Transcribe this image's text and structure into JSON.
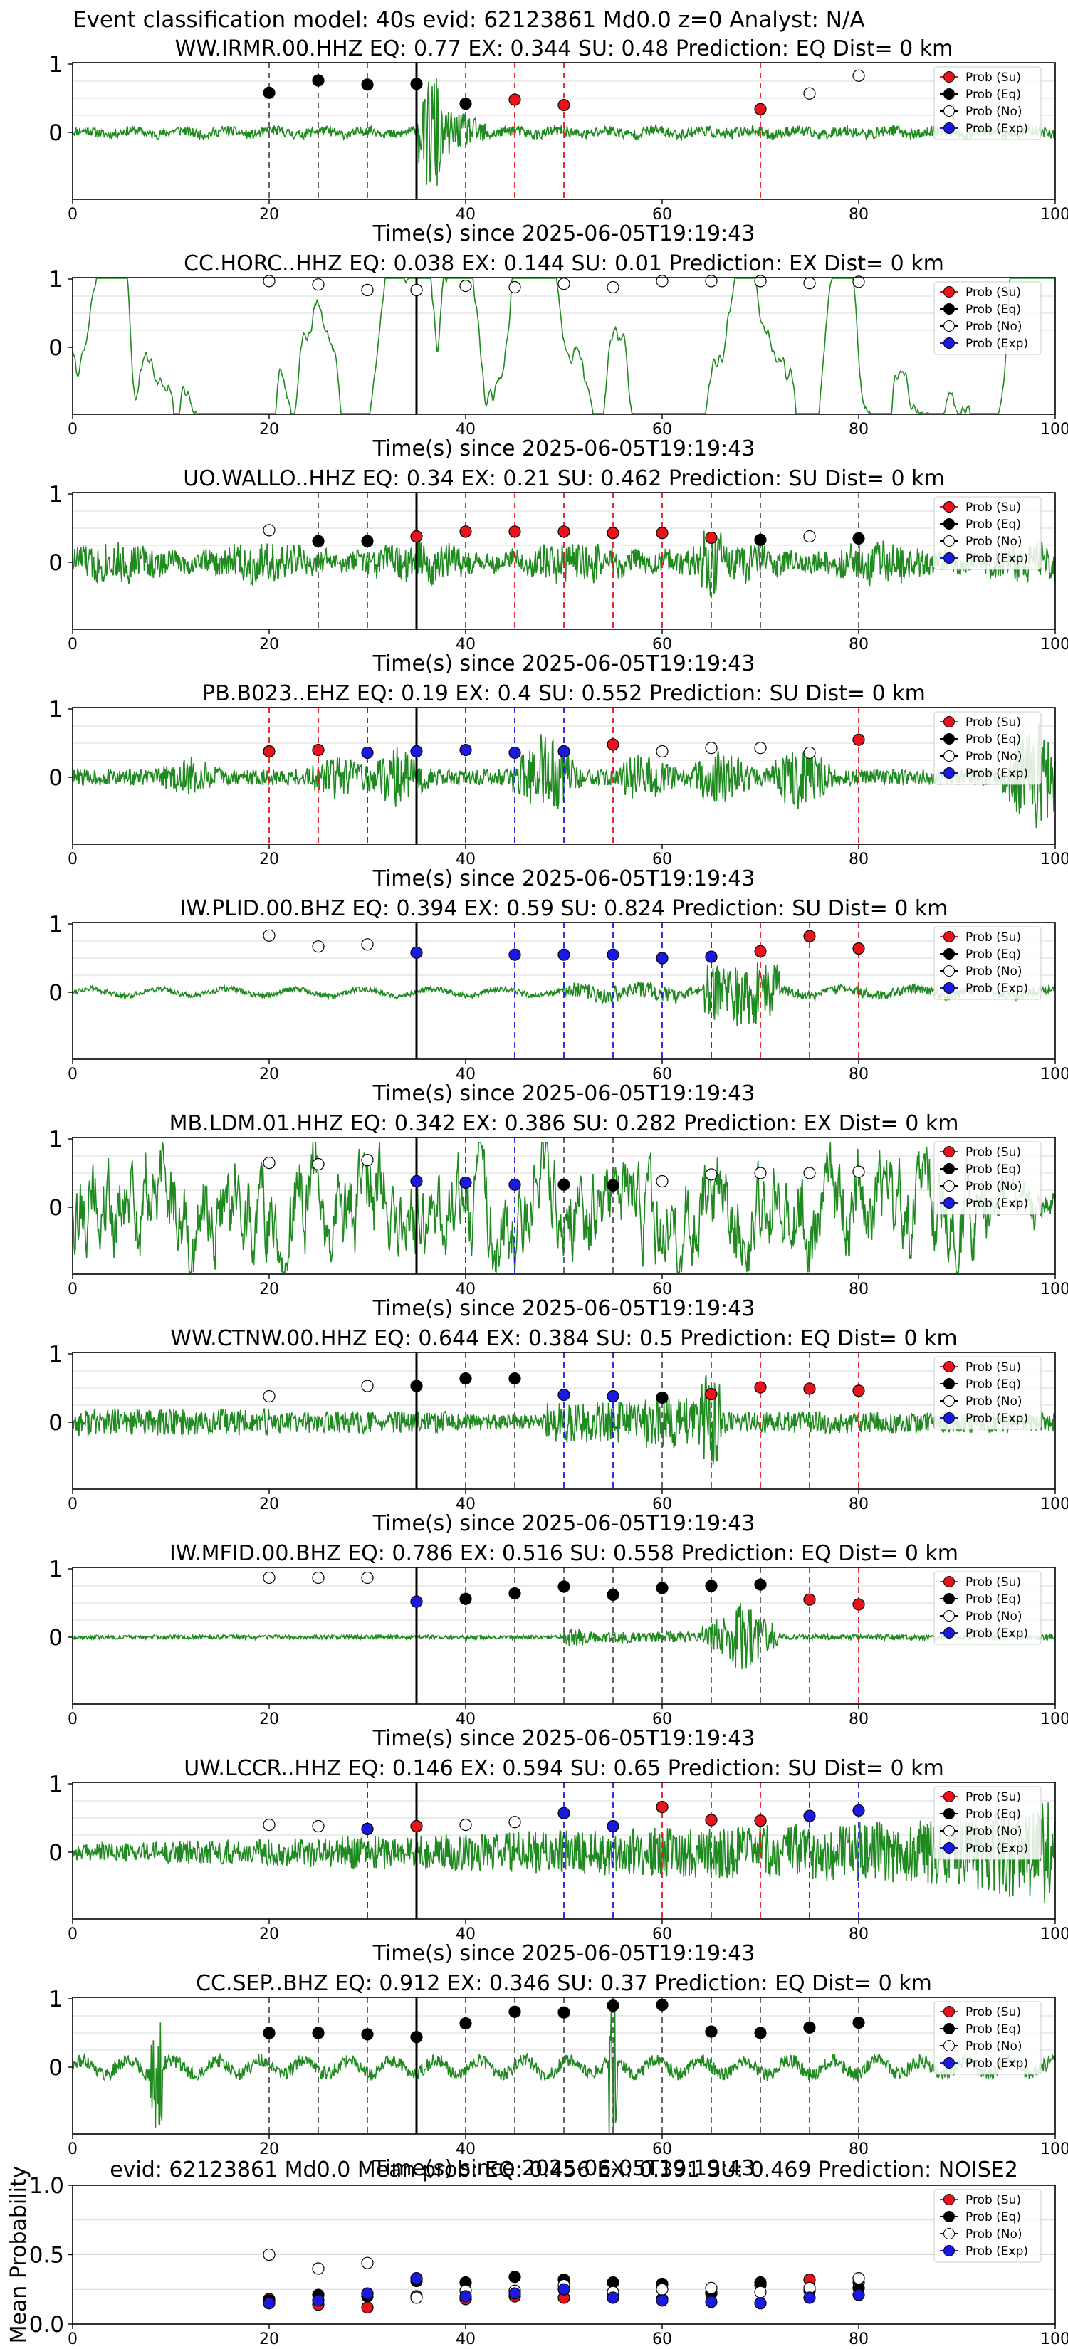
{
  "figure_title": "Event classification model: 40s evid: 62123861 Md0.0 z=0 Analyst: N/A",
  "legend": [
    {
      "label": "Prob (Su)",
      "color": "#e8141b"
    },
    {
      "label": "Prob (Eq)",
      "color": "#000000"
    },
    {
      "label": "Prob (No)",
      "color": "#ffffff"
    },
    {
      "label": "Prob (Exp)",
      "color": "#1a1adf"
    }
  ],
  "colors": {
    "waveform": "#1f8a1f",
    "grid": "#d8d8d8",
    "eq_line": "#555555",
    "su_line": "#e8141b",
    "exp_line": "#1a1adf",
    "pick_line": "#000000"
  },
  "chart_data": [
    {
      "type": "line",
      "title": "WW.IRMR.00.HHZ   EQ: 0.77  EX: 0.344  SU: 0.48   Prediction: EQ    Dist= 0 km",
      "xlabel": "Time(s) since 2025-06-05T19:19:43",
      "ylabel": "",
      "xlim": [
        0,
        100
      ],
      "xticks": [
        0,
        20,
        40,
        60,
        80,
        100
      ],
      "yticks": [
        0,
        1
      ],
      "pick_time": 35,
      "waveform_seed": 11,
      "waveform_kind": "burst35",
      "windows": [
        {
          "t": 20,
          "cls": "eq",
          "p": 0.58
        },
        {
          "t": 25,
          "cls": "eq",
          "p": 0.76
        },
        {
          "t": 30,
          "cls": "eq",
          "p": 0.7
        },
        {
          "t": 35,
          "cls": "eq",
          "p": 0.71
        },
        {
          "t": 40,
          "cls": "eq",
          "p": 0.42
        },
        {
          "t": 45,
          "cls": "su",
          "p": 0.48
        },
        {
          "t": 50,
          "cls": "su",
          "p": 0.4
        },
        {
          "t": 70,
          "cls": "su",
          "p": 0.34
        },
        {
          "t": 75,
          "cls": "no",
          "p": 0.57
        },
        {
          "t": 80,
          "cls": "no",
          "p": 0.83
        }
      ]
    },
    {
      "type": "line",
      "title": "CC.HORC..HHZ   EQ: 0.038  EX: 0.144  SU: 0.01   Prediction: EX    Dist= 0 km",
      "xlabel": "Time(s) since 2025-06-05T19:19:43",
      "ylabel": "",
      "xlim": [
        0,
        100
      ],
      "xticks": [
        0,
        20,
        40,
        60,
        80,
        100
      ],
      "yticks": [
        0,
        1
      ],
      "pick_time": 35,
      "waveform_seed": 22,
      "waveform_kind": "lowfreq",
      "windows": [
        {
          "t": 20,
          "cls": "no",
          "p": 0.97
        },
        {
          "t": 25,
          "cls": "no",
          "p": 0.92
        },
        {
          "t": 30,
          "cls": "no",
          "p": 0.84
        },
        {
          "t": 35,
          "cls": "no",
          "p": 0.84
        },
        {
          "t": 40,
          "cls": "no",
          "p": 0.9
        },
        {
          "t": 45,
          "cls": "no",
          "p": 0.88
        },
        {
          "t": 50,
          "cls": "no",
          "p": 0.93
        },
        {
          "t": 55,
          "cls": "no",
          "p": 0.88
        },
        {
          "t": 60,
          "cls": "no",
          "p": 0.97
        },
        {
          "t": 65,
          "cls": "no",
          "p": 0.97
        },
        {
          "t": 70,
          "cls": "no",
          "p": 0.97
        },
        {
          "t": 75,
          "cls": "no",
          "p": 0.94
        },
        {
          "t": 80,
          "cls": "no",
          "p": 0.96
        }
      ]
    },
    {
      "type": "line",
      "title": "UO.WALLO..HHZ   EQ: 0.34  EX: 0.21  SU: 0.462   Prediction: SU    Dist= 0 km",
      "xlabel": "Time(s) since 2025-06-05T19:19:43",
      "ylabel": "",
      "xlim": [
        0,
        100
      ],
      "xticks": [
        0,
        20,
        40,
        60,
        80,
        100
      ],
      "yticks": [
        0,
        1
      ],
      "pick_time": 35,
      "waveform_seed": 33,
      "waveform_kind": "noisy",
      "windows": [
        {
          "t": 20,
          "cls": "no",
          "p": 0.47
        },
        {
          "t": 25,
          "cls": "eq",
          "p": 0.31
        },
        {
          "t": 30,
          "cls": "eq",
          "p": 0.31
        },
        {
          "t": 35,
          "cls": "su",
          "p": 0.38
        },
        {
          "t": 40,
          "cls": "su",
          "p": 0.45
        },
        {
          "t": 45,
          "cls": "su",
          "p": 0.45
        },
        {
          "t": 50,
          "cls": "su",
          "p": 0.45
        },
        {
          "t": 55,
          "cls": "su",
          "p": 0.43
        },
        {
          "t": 60,
          "cls": "su",
          "p": 0.43
        },
        {
          "t": 65,
          "cls": "su",
          "p": 0.36
        },
        {
          "t": 70,
          "cls": "eq",
          "p": 0.33
        },
        {
          "t": 75,
          "cls": "no",
          "p": 0.38
        },
        {
          "t": 80,
          "cls": "eq",
          "p": 0.35
        }
      ]
    },
    {
      "type": "line",
      "title": "PB.B023..EHZ   EQ: 0.19  EX: 0.4  SU: 0.552   Prediction: SU    Dist= 0 km",
      "xlabel": "Time(s) since 2025-06-05T19:19:43",
      "ylabel": "",
      "xlim": [
        0,
        100
      ],
      "xticks": [
        0,
        20,
        40,
        60,
        80,
        100
      ],
      "yticks": [
        0,
        1
      ],
      "pick_time": 35,
      "waveform_seed": 44,
      "waveform_kind": "bursts",
      "windows": [
        {
          "t": 20,
          "cls": "su",
          "p": 0.38
        },
        {
          "t": 25,
          "cls": "su",
          "p": 0.4
        },
        {
          "t": 30,
          "cls": "exp",
          "p": 0.36
        },
        {
          "t": 35,
          "cls": "exp",
          "p": 0.38
        },
        {
          "t": 40,
          "cls": "exp",
          "p": 0.4
        },
        {
          "t": 45,
          "cls": "exp",
          "p": 0.36
        },
        {
          "t": 50,
          "cls": "exp",
          "p": 0.38
        },
        {
          "t": 55,
          "cls": "su",
          "p": 0.48
        },
        {
          "t": 60,
          "cls": "no",
          "p": 0.38
        },
        {
          "t": 65,
          "cls": "no",
          "p": 0.43
        },
        {
          "t": 70,
          "cls": "no",
          "p": 0.43
        },
        {
          "t": 75,
          "cls": "no",
          "p": 0.36
        },
        {
          "t": 80,
          "cls": "su",
          "p": 0.55
        }
      ]
    },
    {
      "type": "line",
      "title": "IW.PLID.00.BHZ   EQ: 0.394  EX: 0.59  SU: 0.824   Prediction: SU    Dist= 0 km",
      "xlabel": "Time(s) since 2025-06-05T19:19:43",
      "ylabel": "",
      "xlim": [
        0,
        100
      ],
      "xticks": [
        0,
        20,
        40,
        60,
        80,
        100
      ],
      "yticks": [
        0,
        1
      ],
      "pick_time": 35,
      "waveform_seed": 55,
      "waveform_kind": "quiet_late",
      "windows": [
        {
          "t": 20,
          "cls": "no",
          "p": 0.83
        },
        {
          "t": 25,
          "cls": "no",
          "p": 0.67
        },
        {
          "t": 30,
          "cls": "no",
          "p": 0.7
        },
        {
          "t": 35,
          "cls": "exp",
          "p": 0.58
        },
        {
          "t": 45,
          "cls": "exp",
          "p": 0.55
        },
        {
          "t": 50,
          "cls": "exp",
          "p": 0.55
        },
        {
          "t": 55,
          "cls": "exp",
          "p": 0.55
        },
        {
          "t": 60,
          "cls": "exp",
          "p": 0.5
        },
        {
          "t": 65,
          "cls": "exp",
          "p": 0.52
        },
        {
          "t": 70,
          "cls": "su",
          "p": 0.6
        },
        {
          "t": 75,
          "cls": "su",
          "p": 0.82
        },
        {
          "t": 80,
          "cls": "su",
          "p": 0.64
        }
      ]
    },
    {
      "type": "line",
      "title": "MB.LDM.01.HHZ   EQ: 0.342  EX: 0.386  SU: 0.282   Prediction: EX    Dist= 0 km",
      "xlabel": "Time(s) since 2025-06-05T19:19:43",
      "ylabel": "",
      "xlim": [
        0,
        100
      ],
      "xticks": [
        0,
        20,
        40,
        60,
        80,
        100
      ],
      "yticks": [
        0,
        1
      ],
      "pick_time": 35,
      "waveform_seed": 66,
      "waveform_kind": "lowfreq_big",
      "windows": [
        {
          "t": 20,
          "cls": "no",
          "p": 0.65
        },
        {
          "t": 25,
          "cls": "no",
          "p": 0.63
        },
        {
          "t": 30,
          "cls": "no",
          "p": 0.69
        },
        {
          "t": 35,
          "cls": "exp",
          "p": 0.38
        },
        {
          "t": 40,
          "cls": "exp",
          "p": 0.36
        },
        {
          "t": 45,
          "cls": "exp",
          "p": 0.33
        },
        {
          "t": 50,
          "cls": "eq",
          "p": 0.33
        },
        {
          "t": 55,
          "cls": "eq",
          "p": 0.32
        },
        {
          "t": 60,
          "cls": "no",
          "p": 0.38
        },
        {
          "t": 65,
          "cls": "no",
          "p": 0.48
        },
        {
          "t": 70,
          "cls": "no",
          "p": 0.5
        },
        {
          "t": 75,
          "cls": "no",
          "p": 0.5
        },
        {
          "t": 80,
          "cls": "no",
          "p": 0.52
        }
      ]
    },
    {
      "type": "line",
      "title": "WW.CTNW.00.HHZ   EQ: 0.644  EX: 0.384  SU: 0.5   Prediction: EQ    Dist= 0 km",
      "xlabel": "Time(s) since 2025-06-05T19:19:43",
      "ylabel": "",
      "xlim": [
        0,
        100
      ],
      "xticks": [
        0,
        20,
        40,
        60,
        80,
        100
      ],
      "yticks": [
        0,
        1
      ],
      "pick_time": 35,
      "waveform_seed": 77,
      "waveform_kind": "noisy_mid",
      "windows": [
        {
          "t": 20,
          "cls": "no",
          "p": 0.38
        },
        {
          "t": 30,
          "cls": "no",
          "p": 0.53
        },
        {
          "t": 35,
          "cls": "eq",
          "p": 0.53
        },
        {
          "t": 40,
          "cls": "eq",
          "p": 0.64
        },
        {
          "t": 45,
          "cls": "eq",
          "p": 0.64
        },
        {
          "t": 50,
          "cls": "exp",
          "p": 0.4
        },
        {
          "t": 55,
          "cls": "exp",
          "p": 0.38
        },
        {
          "t": 60,
          "cls": "eq",
          "p": 0.36
        },
        {
          "t": 65,
          "cls": "su",
          "p": 0.41
        },
        {
          "t": 70,
          "cls": "su",
          "p": 0.51
        },
        {
          "t": 75,
          "cls": "su",
          "p": 0.49
        },
        {
          "t": 80,
          "cls": "su",
          "p": 0.46
        }
      ]
    },
    {
      "type": "line",
      "title": "IW.MFID.00.BHZ   EQ: 0.786  EX: 0.516  SU: 0.558   Prediction: EQ    Dist= 0 km",
      "xlabel": "Time(s) since 2025-06-05T19:19:43",
      "ylabel": "",
      "xlim": [
        0,
        100
      ],
      "xticks": [
        0,
        20,
        40,
        60,
        80,
        100
      ],
      "yticks": [
        0,
        1
      ],
      "pick_time": 35,
      "waveform_seed": 88,
      "waveform_kind": "quiet_event",
      "windows": [
        {
          "t": 20,
          "cls": "no",
          "p": 0.87
        },
        {
          "t": 25,
          "cls": "no",
          "p": 0.87
        },
        {
          "t": 30,
          "cls": "no",
          "p": 0.87
        },
        {
          "t": 35,
          "cls": "exp",
          "p": 0.52
        },
        {
          "t": 40,
          "cls": "eq",
          "p": 0.56
        },
        {
          "t": 45,
          "cls": "eq",
          "p": 0.64
        },
        {
          "t": 50,
          "cls": "eq",
          "p": 0.74
        },
        {
          "t": 55,
          "cls": "eq",
          "p": 0.62
        },
        {
          "t": 60,
          "cls": "eq",
          "p": 0.72
        },
        {
          "t": 65,
          "cls": "eq",
          "p": 0.75
        },
        {
          "t": 70,
          "cls": "eq",
          "p": 0.77
        },
        {
          "t": 75,
          "cls": "su",
          "p": 0.55
        },
        {
          "t": 80,
          "cls": "su",
          "p": 0.48
        }
      ]
    },
    {
      "type": "line",
      "title": "UW.LCCR..HHZ   EQ: 0.146  EX: 0.594  SU: 0.65   Prediction: SU    Dist= 0 km",
      "xlabel": "Time(s) since 2025-06-05T19:19:43",
      "ylabel": "",
      "xlim": [
        0,
        100
      ],
      "xticks": [
        0,
        20,
        40,
        60,
        80,
        100
      ],
      "yticks": [
        0,
        1
      ],
      "pick_time": 35,
      "waveform_seed": 99,
      "waveform_kind": "noisy_growing",
      "windows": [
        {
          "t": 20,
          "cls": "no",
          "p": 0.4
        },
        {
          "t": 25,
          "cls": "no",
          "p": 0.38
        },
        {
          "t": 30,
          "cls": "exp",
          "p": 0.34
        },
        {
          "t": 35,
          "cls": "su",
          "p": 0.38
        },
        {
          "t": 40,
          "cls": "no",
          "p": 0.4
        },
        {
          "t": 45,
          "cls": "no",
          "p": 0.44
        },
        {
          "t": 50,
          "cls": "exp",
          "p": 0.57
        },
        {
          "t": 55,
          "cls": "exp",
          "p": 0.38
        },
        {
          "t": 60,
          "cls": "su",
          "p": 0.66
        },
        {
          "t": 65,
          "cls": "su",
          "p": 0.47
        },
        {
          "t": 70,
          "cls": "su",
          "p": 0.46
        },
        {
          "t": 75,
          "cls": "exp",
          "p": 0.53
        },
        {
          "t": 80,
          "cls": "exp",
          "p": 0.61
        }
      ]
    },
    {
      "type": "line",
      "title": "CC.SEP..BHZ   EQ: 0.912  EX: 0.346  SU: 0.37   Prediction: EQ    Dist= 0 km",
      "xlabel": "Time(s) since 2025-06-05T19:19:43",
      "ylabel": "",
      "xlim": [
        0,
        100
      ],
      "xticks": [
        0,
        20,
        40,
        60,
        80,
        100
      ],
      "yticks": [
        0,
        1
      ],
      "pick_time": 35,
      "waveform_seed": 111,
      "waveform_kind": "spikes",
      "windows": [
        {
          "t": 20,
          "cls": "eq",
          "p": 0.5
        },
        {
          "t": 25,
          "cls": "eq",
          "p": 0.5
        },
        {
          "t": 30,
          "cls": "eq",
          "p": 0.48
        },
        {
          "t": 35,
          "cls": "eq",
          "p": 0.44
        },
        {
          "t": 40,
          "cls": "eq",
          "p": 0.64
        },
        {
          "t": 45,
          "cls": "eq",
          "p": 0.81
        },
        {
          "t": 50,
          "cls": "eq",
          "p": 0.8
        },
        {
          "t": 55,
          "cls": "eq",
          "p": 0.9
        },
        {
          "t": 60,
          "cls": "eq",
          "p": 0.91
        },
        {
          "t": 65,
          "cls": "eq",
          "p": 0.52
        },
        {
          "t": 70,
          "cls": "eq",
          "p": 0.5
        },
        {
          "t": 75,
          "cls": "eq",
          "p": 0.58
        },
        {
          "t": 80,
          "cls": "eq",
          "p": 0.65
        }
      ]
    },
    {
      "type": "scatter",
      "title": "evid: 62123861  Md0.0   Mean prob:   EQ: 0.456  EX: 0.391  SU: 0.469   Prediction: NOISE2",
      "xlabel": "",
      "ylabel": "Mean Probability",
      "xlim": [
        0,
        100
      ],
      "ylim": [
        0,
        1
      ],
      "xticks": [
        0,
        20,
        40,
        60,
        80,
        100
      ],
      "yticks": [
        0.0,
        0.5,
        1.0
      ],
      "x": [
        20,
        25,
        30,
        35,
        40,
        45,
        50,
        55,
        60,
        65,
        70,
        75,
        80
      ],
      "series": [
        {
          "name": "Prob (Su)",
          "cls": "su",
          "values": [
            0.18,
            0.14,
            0.12,
            0.2,
            0.18,
            0.2,
            0.19,
            0.19,
            0.18,
            0.22,
            0.28,
            0.32,
            0.3
          ]
        },
        {
          "name": "Prob (Eq)",
          "cls": "eq",
          "values": [
            0.17,
            0.21,
            0.2,
            0.31,
            0.3,
            0.34,
            0.32,
            0.3,
            0.29,
            0.23,
            0.3,
            0.24,
            0.26
          ]
        },
        {
          "name": "Prob (No)",
          "cls": "no",
          "values": [
            0.5,
            0.4,
            0.44,
            0.19,
            0.24,
            0.24,
            0.28,
            0.23,
            0.25,
            0.26,
            0.23,
            0.26,
            0.33
          ]
        },
        {
          "name": "Prob (Exp)",
          "cls": "exp",
          "values": [
            0.15,
            0.17,
            0.22,
            0.33,
            0.2,
            0.22,
            0.25,
            0.19,
            0.17,
            0.16,
            0.15,
            0.19,
            0.21
          ]
        }
      ]
    }
  ]
}
